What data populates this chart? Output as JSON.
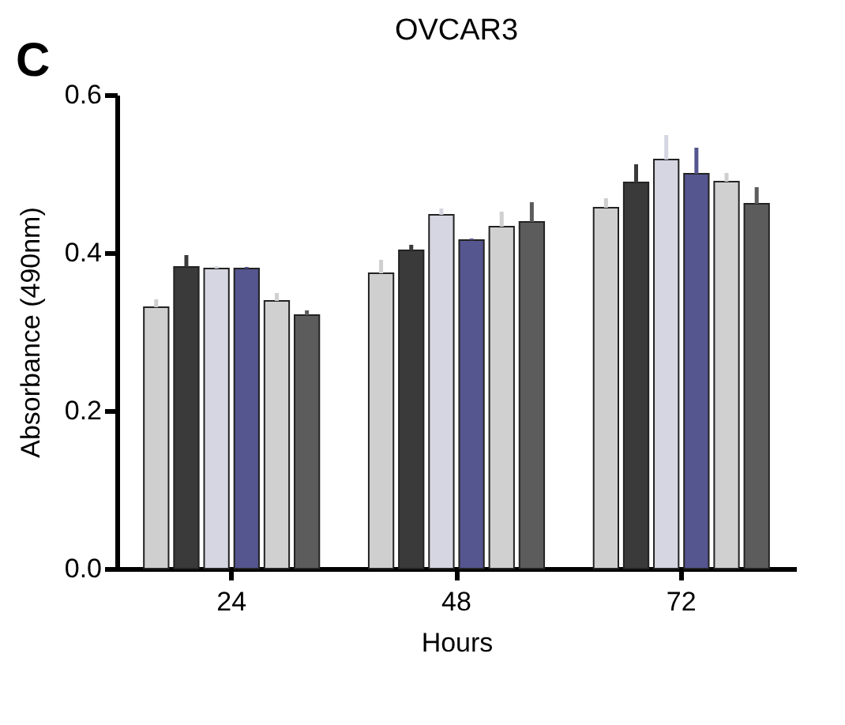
{
  "chart_data": {
    "type": "bar",
    "title": "OVCAR3",
    "xlabel": "Hours",
    "ylabel": "Absorbance (490nm)",
    "annotations": [
      "C"
    ],
    "categories": [
      "24",
      "48",
      "72"
    ],
    "series": [
      {
        "color": "#cfcfcf",
        "values": [
          0.331,
          0.374,
          0.457
        ],
        "errors": [
          [
            0.331,
            0.341
          ],
          [
            0.374,
            0.391
          ],
          [
            0.457,
            0.469
          ]
        ]
      },
      {
        "color": "#3a3a3a",
        "values": [
          0.382,
          0.403,
          0.489
        ],
        "errors": [
          [
            0.382,
            0.397
          ],
          [
            0.403,
            0.41
          ],
          [
            0.489,
            0.512
          ]
        ]
      },
      {
        "color": "#d6d6e2",
        "values": [
          0.38,
          0.448,
          0.518
        ],
        "errors": [
          [
            0.38,
            0.383
          ],
          [
            0.448,
            0.456
          ],
          [
            0.518,
            0.549
          ]
        ]
      },
      {
        "color": "#55558f",
        "values": [
          0.38,
          0.416,
          0.5
        ],
        "errors": [
          [
            0.38,
            0.382
          ],
          [
            0.416,
            0.418
          ],
          [
            0.5,
            0.533
          ]
        ]
      },
      {
        "color": "#d0d0d0",
        "values": [
          0.339,
          0.433,
          0.49
        ],
        "errors": [
          [
            0.339,
            0.349
          ],
          [
            0.433,
            0.452
          ],
          [
            0.49,
            0.501
          ]
        ]
      },
      {
        "color": "#5c5c5c",
        "values": [
          0.321,
          0.439,
          0.462
        ],
        "errors": [
          [
            0.321,
            0.327
          ],
          [
            0.439,
            0.464
          ],
          [
            0.462,
            0.483
          ]
        ]
      }
    ],
    "ylim": [
      0,
      0.6
    ],
    "yticks": [
      {
        "value": 0,
        "label": "0.0"
      },
      {
        "value": 0.2,
        "label": "0.2"
      },
      {
        "value": 0.4,
        "label": "0.4"
      },
      {
        "value": 0.6,
        "label": "0.6"
      }
    ]
  }
}
